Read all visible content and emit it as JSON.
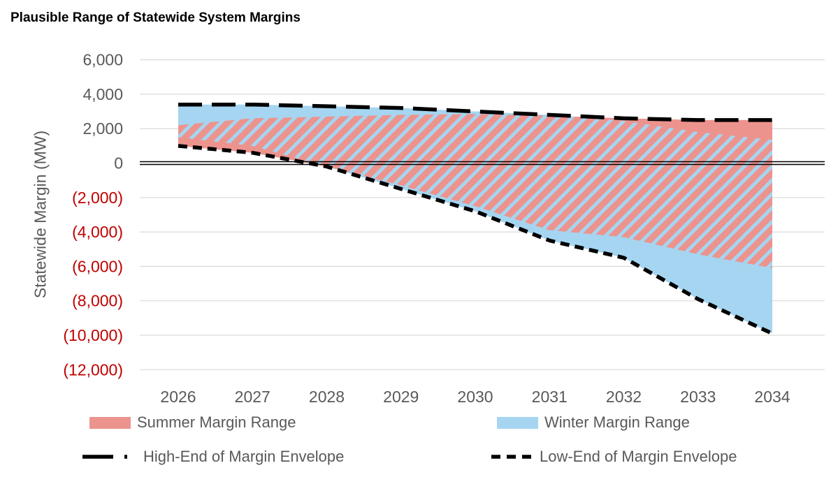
{
  "title": "Plausible Range of Statewide System Margins",
  "chart_data": {
    "type": "area",
    "title": "Plausible Range of Statewide System Margins",
    "ylabel": "Statewide Margin (MW)",
    "xlabel": "",
    "categories": [
      "2026",
      "2027",
      "2028",
      "2029",
      "2030",
      "2031",
      "2032",
      "2033",
      "2034"
    ],
    "ylim": [
      -12000,
      6000
    ],
    "y_tick_step": 2000,
    "grid": "horizontal",
    "legend_position": "bottom",
    "y_ticks": [
      {
        "label": "6,000",
        "value": 6000,
        "negative": false
      },
      {
        "label": "4,000",
        "value": 4000,
        "negative": false
      },
      {
        "label": "2,000",
        "value": 2000,
        "negative": false
      },
      {
        "label": "0",
        "value": 0,
        "negative": false
      },
      {
        "label": "(2,000)",
        "value": -2000,
        "negative": true
      },
      {
        "label": "(4,000)",
        "value": -4000,
        "negative": true
      },
      {
        "label": "(6,000)",
        "value": -6000,
        "negative": true
      },
      {
        "label": "(8,000)",
        "value": -8000,
        "negative": true
      },
      {
        "label": "(10,000)",
        "value": -10000,
        "negative": true
      },
      {
        "label": "(12,000)",
        "value": -12000,
        "negative": true
      }
    ],
    "series": [
      {
        "name": "Summer Margin Range",
        "role": "summer_range",
        "style": "band-hatched",
        "high": [
          2200,
          2600,
          2700,
          2800,
          2850,
          2750,
          2600,
          2500,
          2500
        ],
        "low": [
          1000,
          600,
          -200,
          -1300,
          -2500,
          -3900,
          -4300,
          -5300,
          -6100
        ]
      },
      {
        "name": "Winter Margin Range",
        "role": "winter_range",
        "style": "band-solid",
        "high": [
          3400,
          3400,
          3300,
          3200,
          3000,
          2800,
          2450,
          1800,
          1350
        ],
        "low": [
          1500,
          1000,
          -200,
          -1500,
          -2800,
          -4500,
          -5500,
          -7900,
          -9900
        ]
      },
      {
        "name": "High-End of Margin Envelope",
        "role": "high_envelope",
        "style": "long-dash-dot-line",
        "values": [
          3400,
          3400,
          3300,
          3200,
          3000,
          2800,
          2600,
          2500,
          2500
        ]
      },
      {
        "name": "Low-End of Margin Envelope",
        "role": "low_envelope",
        "style": "short-dash-line",
        "values": [
          1000,
          600,
          -200,
          -1500,
          -2800,
          -4500,
          -5500,
          -7900,
          -9900
        ]
      }
    ],
    "colors": {
      "summer": "#ED938E",
      "winter": "#A5D5F0",
      "envelope_line": "#000000",
      "axis_text": "#595959",
      "negative_tick_text": "#C00000",
      "gridline": "#D9D9D9",
      "zero_axis": "#000000"
    }
  }
}
